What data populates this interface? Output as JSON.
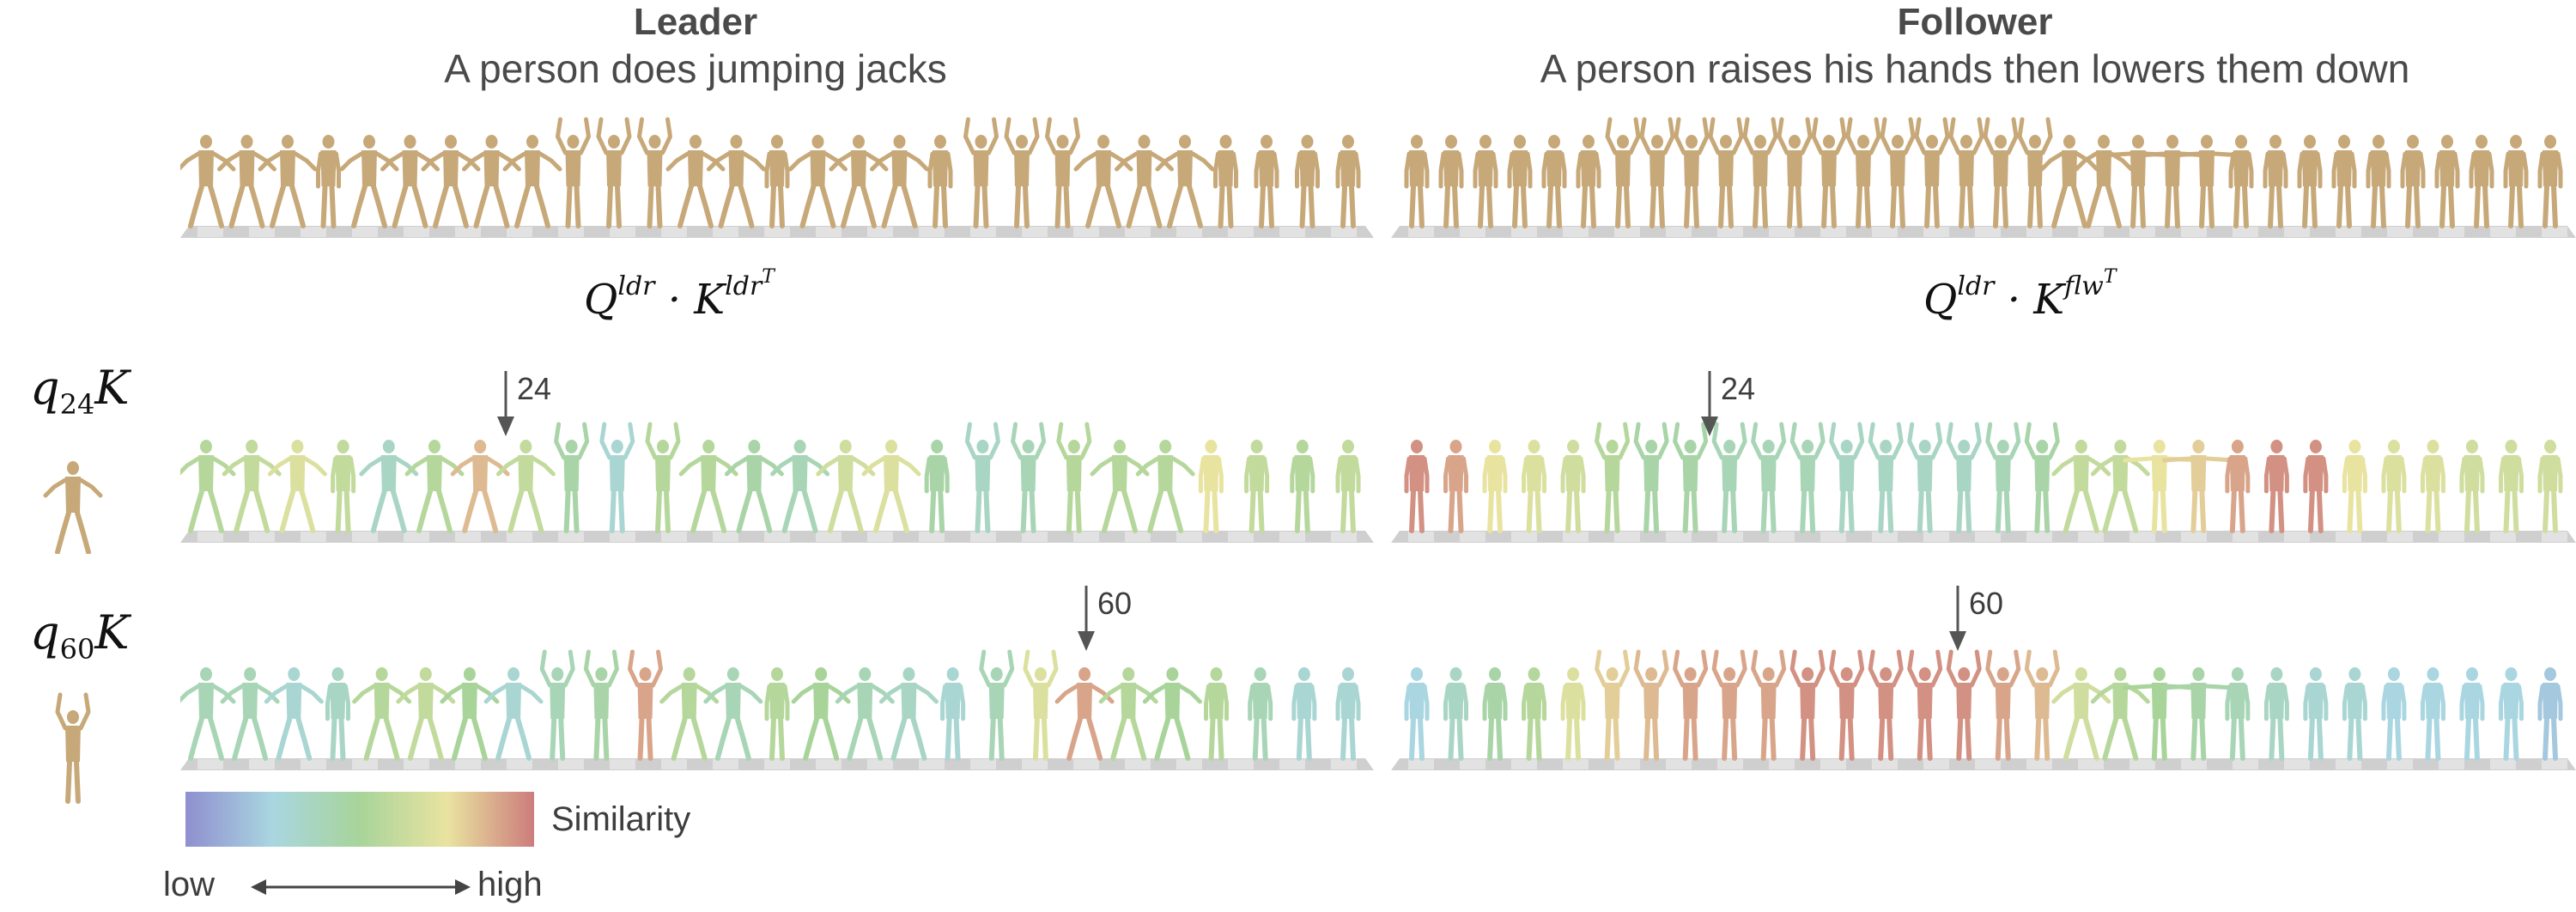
{
  "leader": {
    "role": "Leader",
    "caption": "A person does jumping jacks"
  },
  "follower": {
    "role": "Follower",
    "caption": "A person raises his hands then lowers them down"
  },
  "formulas": {
    "self": {
      "q": "Q",
      "q_sup": "ldr",
      "dot": "·",
      "k": "K",
      "k_sup": "ldr",
      "t": "T"
    },
    "cross": {
      "q": "Q",
      "q_sup": "ldr",
      "dot": "·",
      "k": "K",
      "k_sup": "flw",
      "t": "T"
    }
  },
  "rows": [
    {
      "q": "q",
      "sub": "24",
      "k": "K",
      "marker": "24"
    },
    {
      "q": "q",
      "sub": "60",
      "k": "K",
      "marker": "60"
    }
  ],
  "colorbar": {
    "label": "Similarity",
    "low": "low",
    "high": "high",
    "colors": [
      "#8f8fcf",
      "#a9d6e0",
      "#a8d49a",
      "#e9e3a0",
      "#cc7c7c"
    ]
  },
  "colors": {
    "neutral_body": "#c7a878",
    "floor": "#cfcfcf"
  },
  "leader_poses": [
    "x",
    "x",
    "x",
    "n",
    "x",
    "x",
    "x",
    "x",
    "x",
    "u",
    "u",
    "u",
    "x",
    "x",
    "n",
    "x",
    "x",
    "x",
    "n",
    "u",
    "u",
    "u",
    "x",
    "x",
    "x",
    "n",
    "n",
    "n",
    "n"
  ],
  "follower_poses": [
    "n",
    "n",
    "n",
    "n",
    "n",
    "n",
    "u",
    "u",
    "u",
    "u",
    "u",
    "u",
    "u",
    "u",
    "u",
    "u",
    "u",
    "u",
    "u",
    "x",
    "x",
    "t",
    "t",
    "t",
    "n",
    "n",
    "n",
    "n",
    "n",
    "n",
    "n",
    "n",
    "n",
    "n"
  ],
  "sim_leader_q24": [
    0.55,
    0.6,
    0.7,
    0.6,
    0.35,
    0.55,
    0.85,
    0.6,
    0.45,
    0.3,
    0.55,
    0.55,
    0.45,
    0.4,
    0.65,
    0.7,
    0.45,
    0.35,
    0.4,
    0.55,
    0.55,
    0.55,
    0.75,
    0.6,
    0.55,
    0.6
  ],
  "sim_follower_q24": [
    0.95,
    0.9,
    0.75,
    0.7,
    0.65,
    0.55,
    0.45,
    0.45,
    0.4,
    0.4,
    0.4,
    0.35,
    0.35,
    0.35,
    0.35,
    0.4,
    0.45,
    0.6,
    0.6,
    0.75,
    0.8,
    0.9,
    0.95,
    0.95,
    0.75,
    0.7,
    0.7,
    0.65,
    0.65,
    0.65
  ],
  "sim_leader_q60": [
    0.4,
    0.4,
    0.3,
    0.35,
    0.55,
    0.6,
    0.5,
    0.3,
    0.4,
    0.45,
    0.9,
    0.55,
    0.4,
    0.55,
    0.5,
    0.4,
    0.35,
    0.3,
    0.4,
    0.7,
    0.9,
    0.55,
    0.5,
    0.55,
    0.4,
    0.3,
    0.3
  ],
  "sim_follower_q60": [
    0.25,
    0.35,
    0.45,
    0.55,
    0.7,
    0.8,
    0.85,
    0.9,
    0.9,
    0.9,
    0.95,
    0.95,
    0.95,
    0.95,
    0.95,
    0.9,
    0.85,
    0.65,
    0.55,
    0.5,
    0.45,
    0.4,
    0.35,
    0.3,
    0.3,
    0.25,
    0.25,
    0.25,
    0.25,
    0.2
  ]
}
